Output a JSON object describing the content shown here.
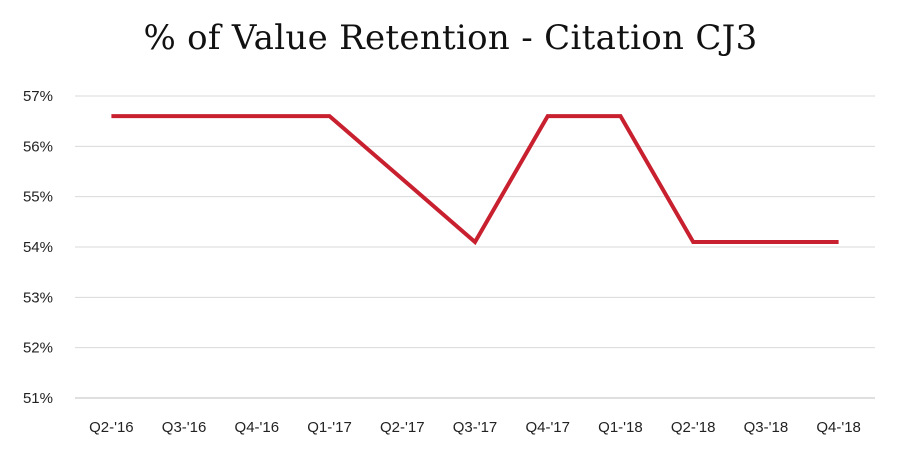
{
  "chart_data": {
    "type": "line",
    "title": "% of Value Retention - Citation CJ3",
    "xlabel": "",
    "ylabel": "",
    "categories": [
      "Q2-'16",
      "Q3-'16",
      "Q4-'16",
      "Q1-'17",
      "Q2-'17",
      "Q3-'17",
      "Q4-'17",
      "Q1-'18",
      "Q2-'18",
      "Q3-'18",
      "Q4-'18"
    ],
    "series": [
      {
        "values": [
          56.6,
          56.6,
          56.6,
          56.6,
          55.35,
          54.1,
          56.6,
          56.6,
          54.1,
          54.1,
          54.1
        ],
        "color": "#c8202f"
      }
    ],
    "ylim": [
      51,
      57
    ],
    "yticks": [
      51,
      52,
      53,
      54,
      55,
      56,
      57
    ],
    "ytick_suffix": "%",
    "grid": true,
    "legend": "none"
  }
}
